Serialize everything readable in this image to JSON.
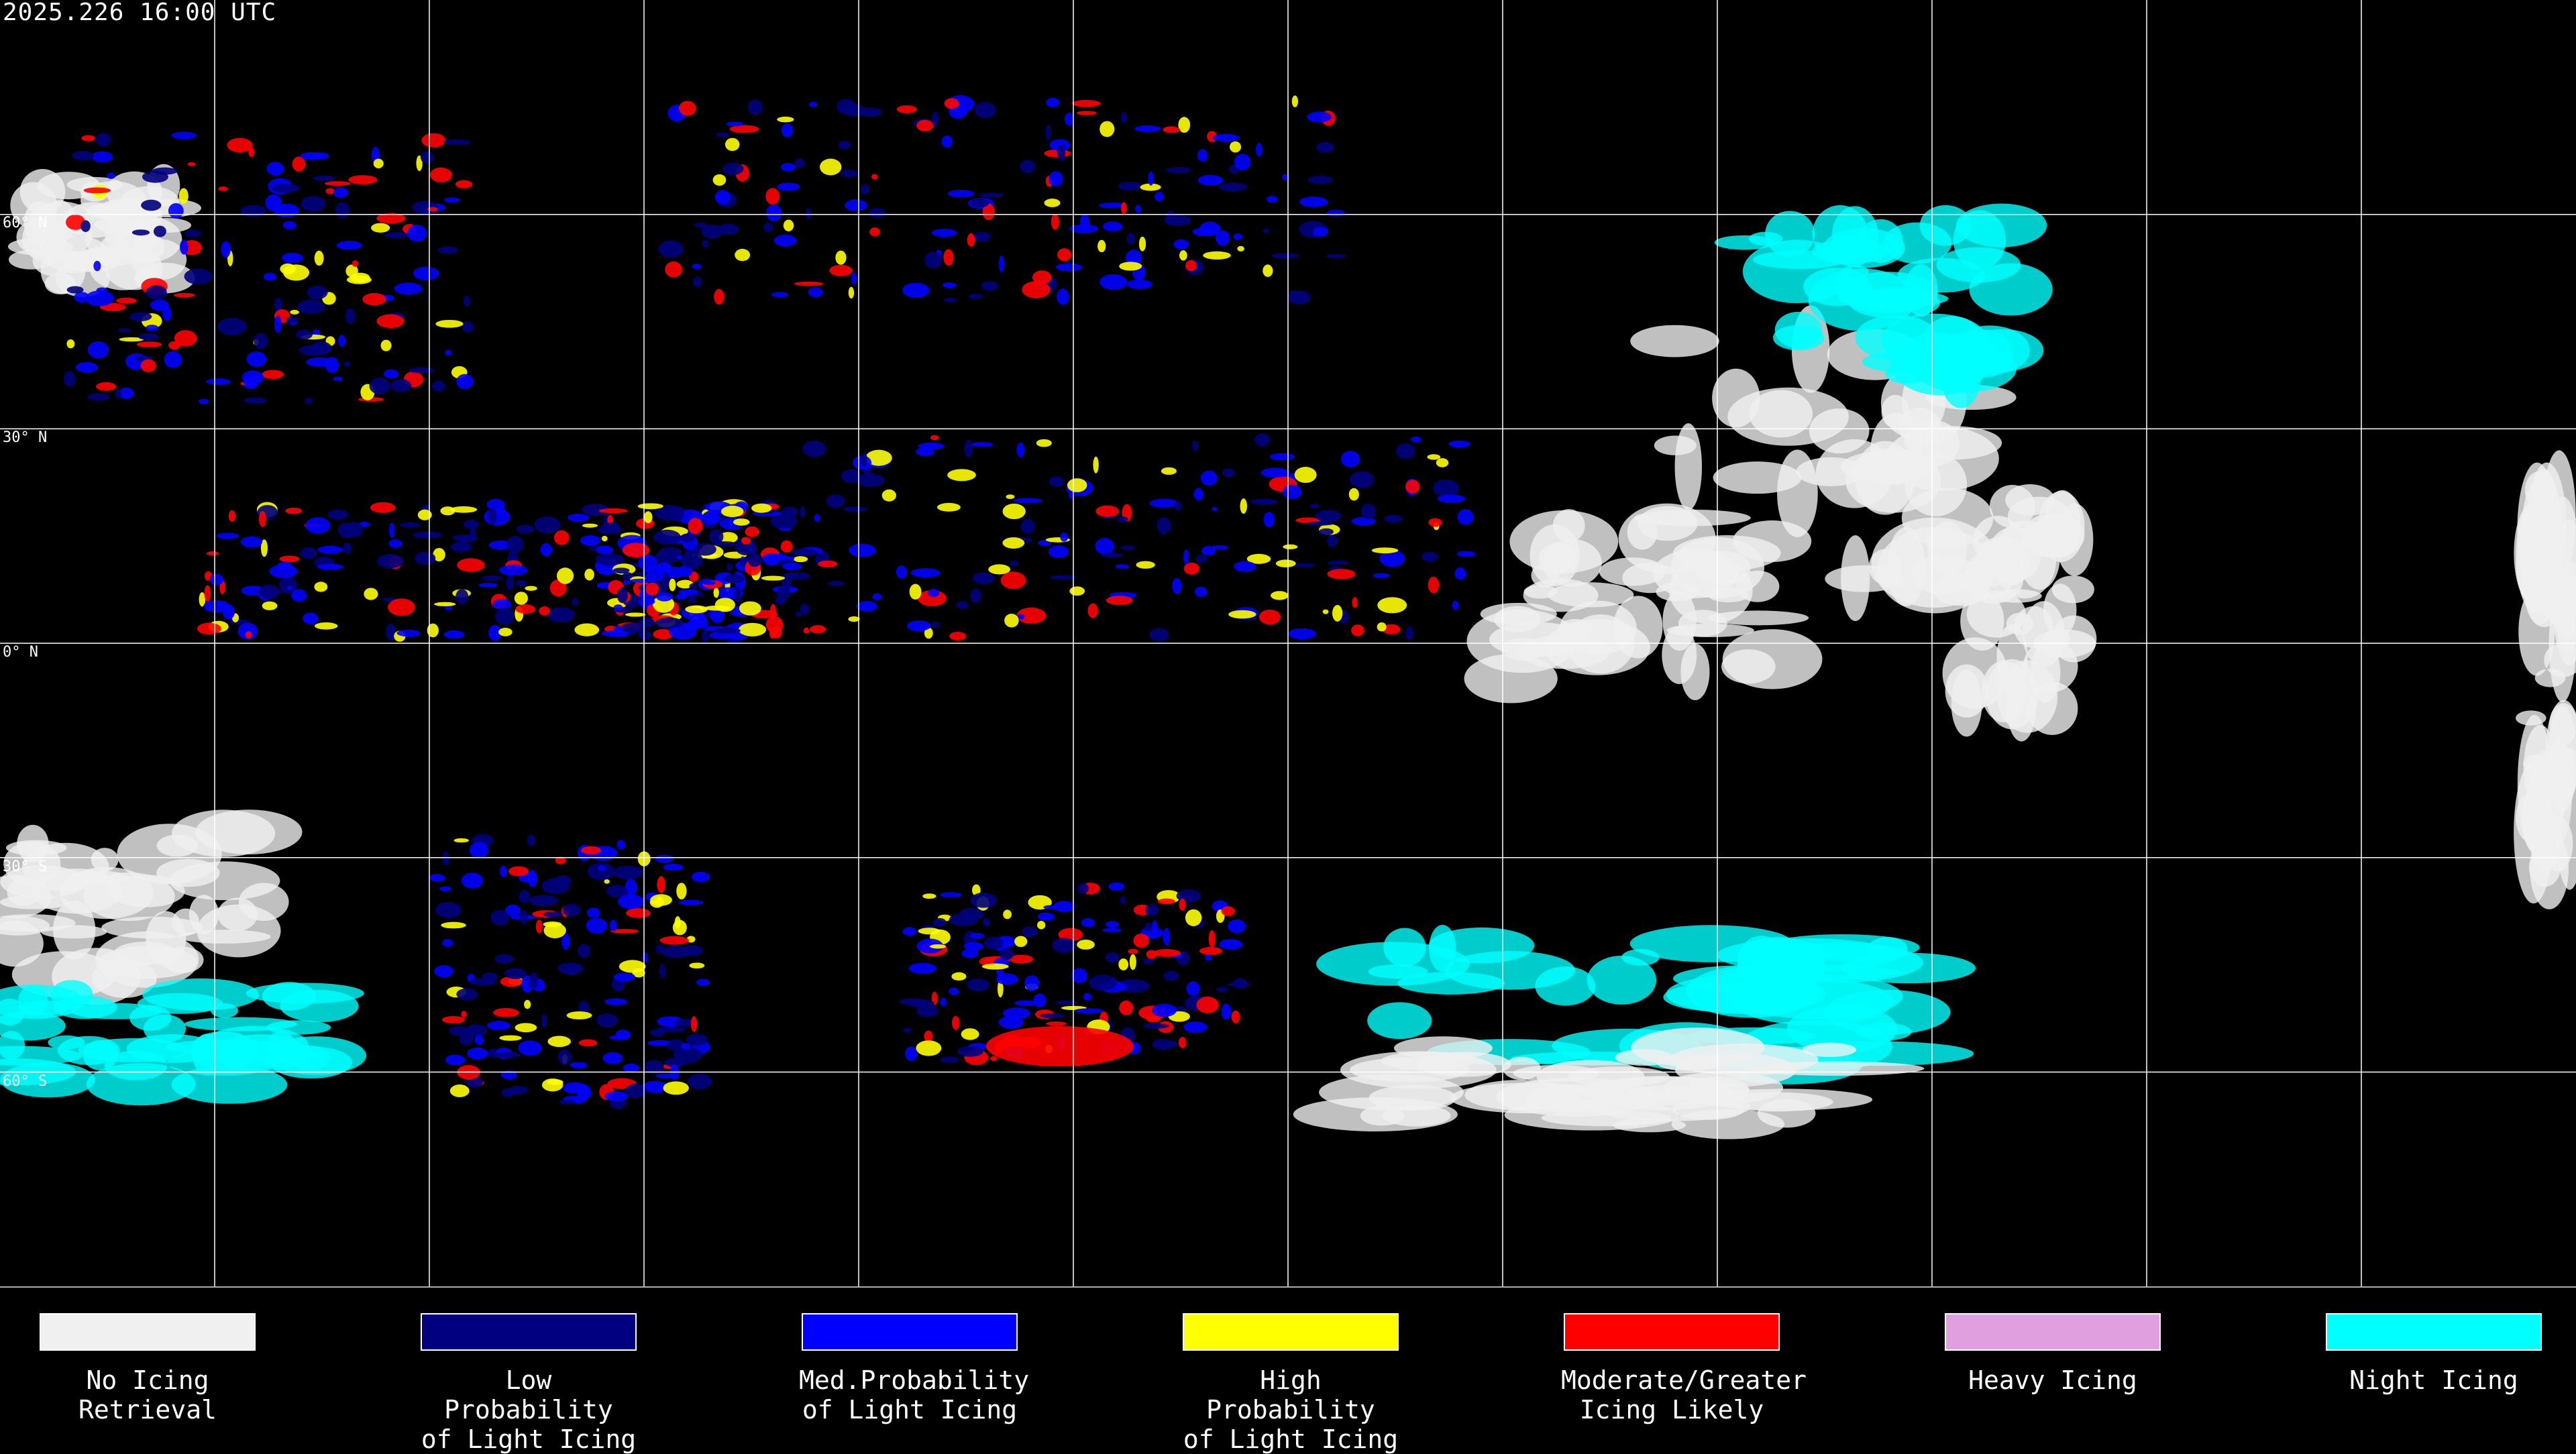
{
  "timestamp": "2025.226 16:00 UTC",
  "latitude_labels": [
    "60° N",
    "30° N",
    "0° N",
    "30° S",
    "60° S"
  ],
  "legend": [
    {
      "line1": "No Icing",
      "line2": "Retrieval",
      "color": "#f0f0f0"
    },
    {
      "line1": "Low Probability",
      "line2": "of Light Icing",
      "color": "#000080"
    },
    {
      "line1": "Med.Probability",
      "line2": "of Light Icing",
      "color": "#0000ff"
    },
    {
      "line1": "High Probability",
      "line2": "of Light Icing",
      "color": "#ffff00"
    },
    {
      "line1": "Moderate/Greater",
      "line2": "Icing Likely",
      "color": "#ff0000"
    },
    {
      "line1": "Heavy Icing",
      "line2": "",
      "color": "#e0a0e0"
    },
    {
      "line1": "Night Icing",
      "line2": "",
      "color": "#00ffff"
    }
  ]
}
